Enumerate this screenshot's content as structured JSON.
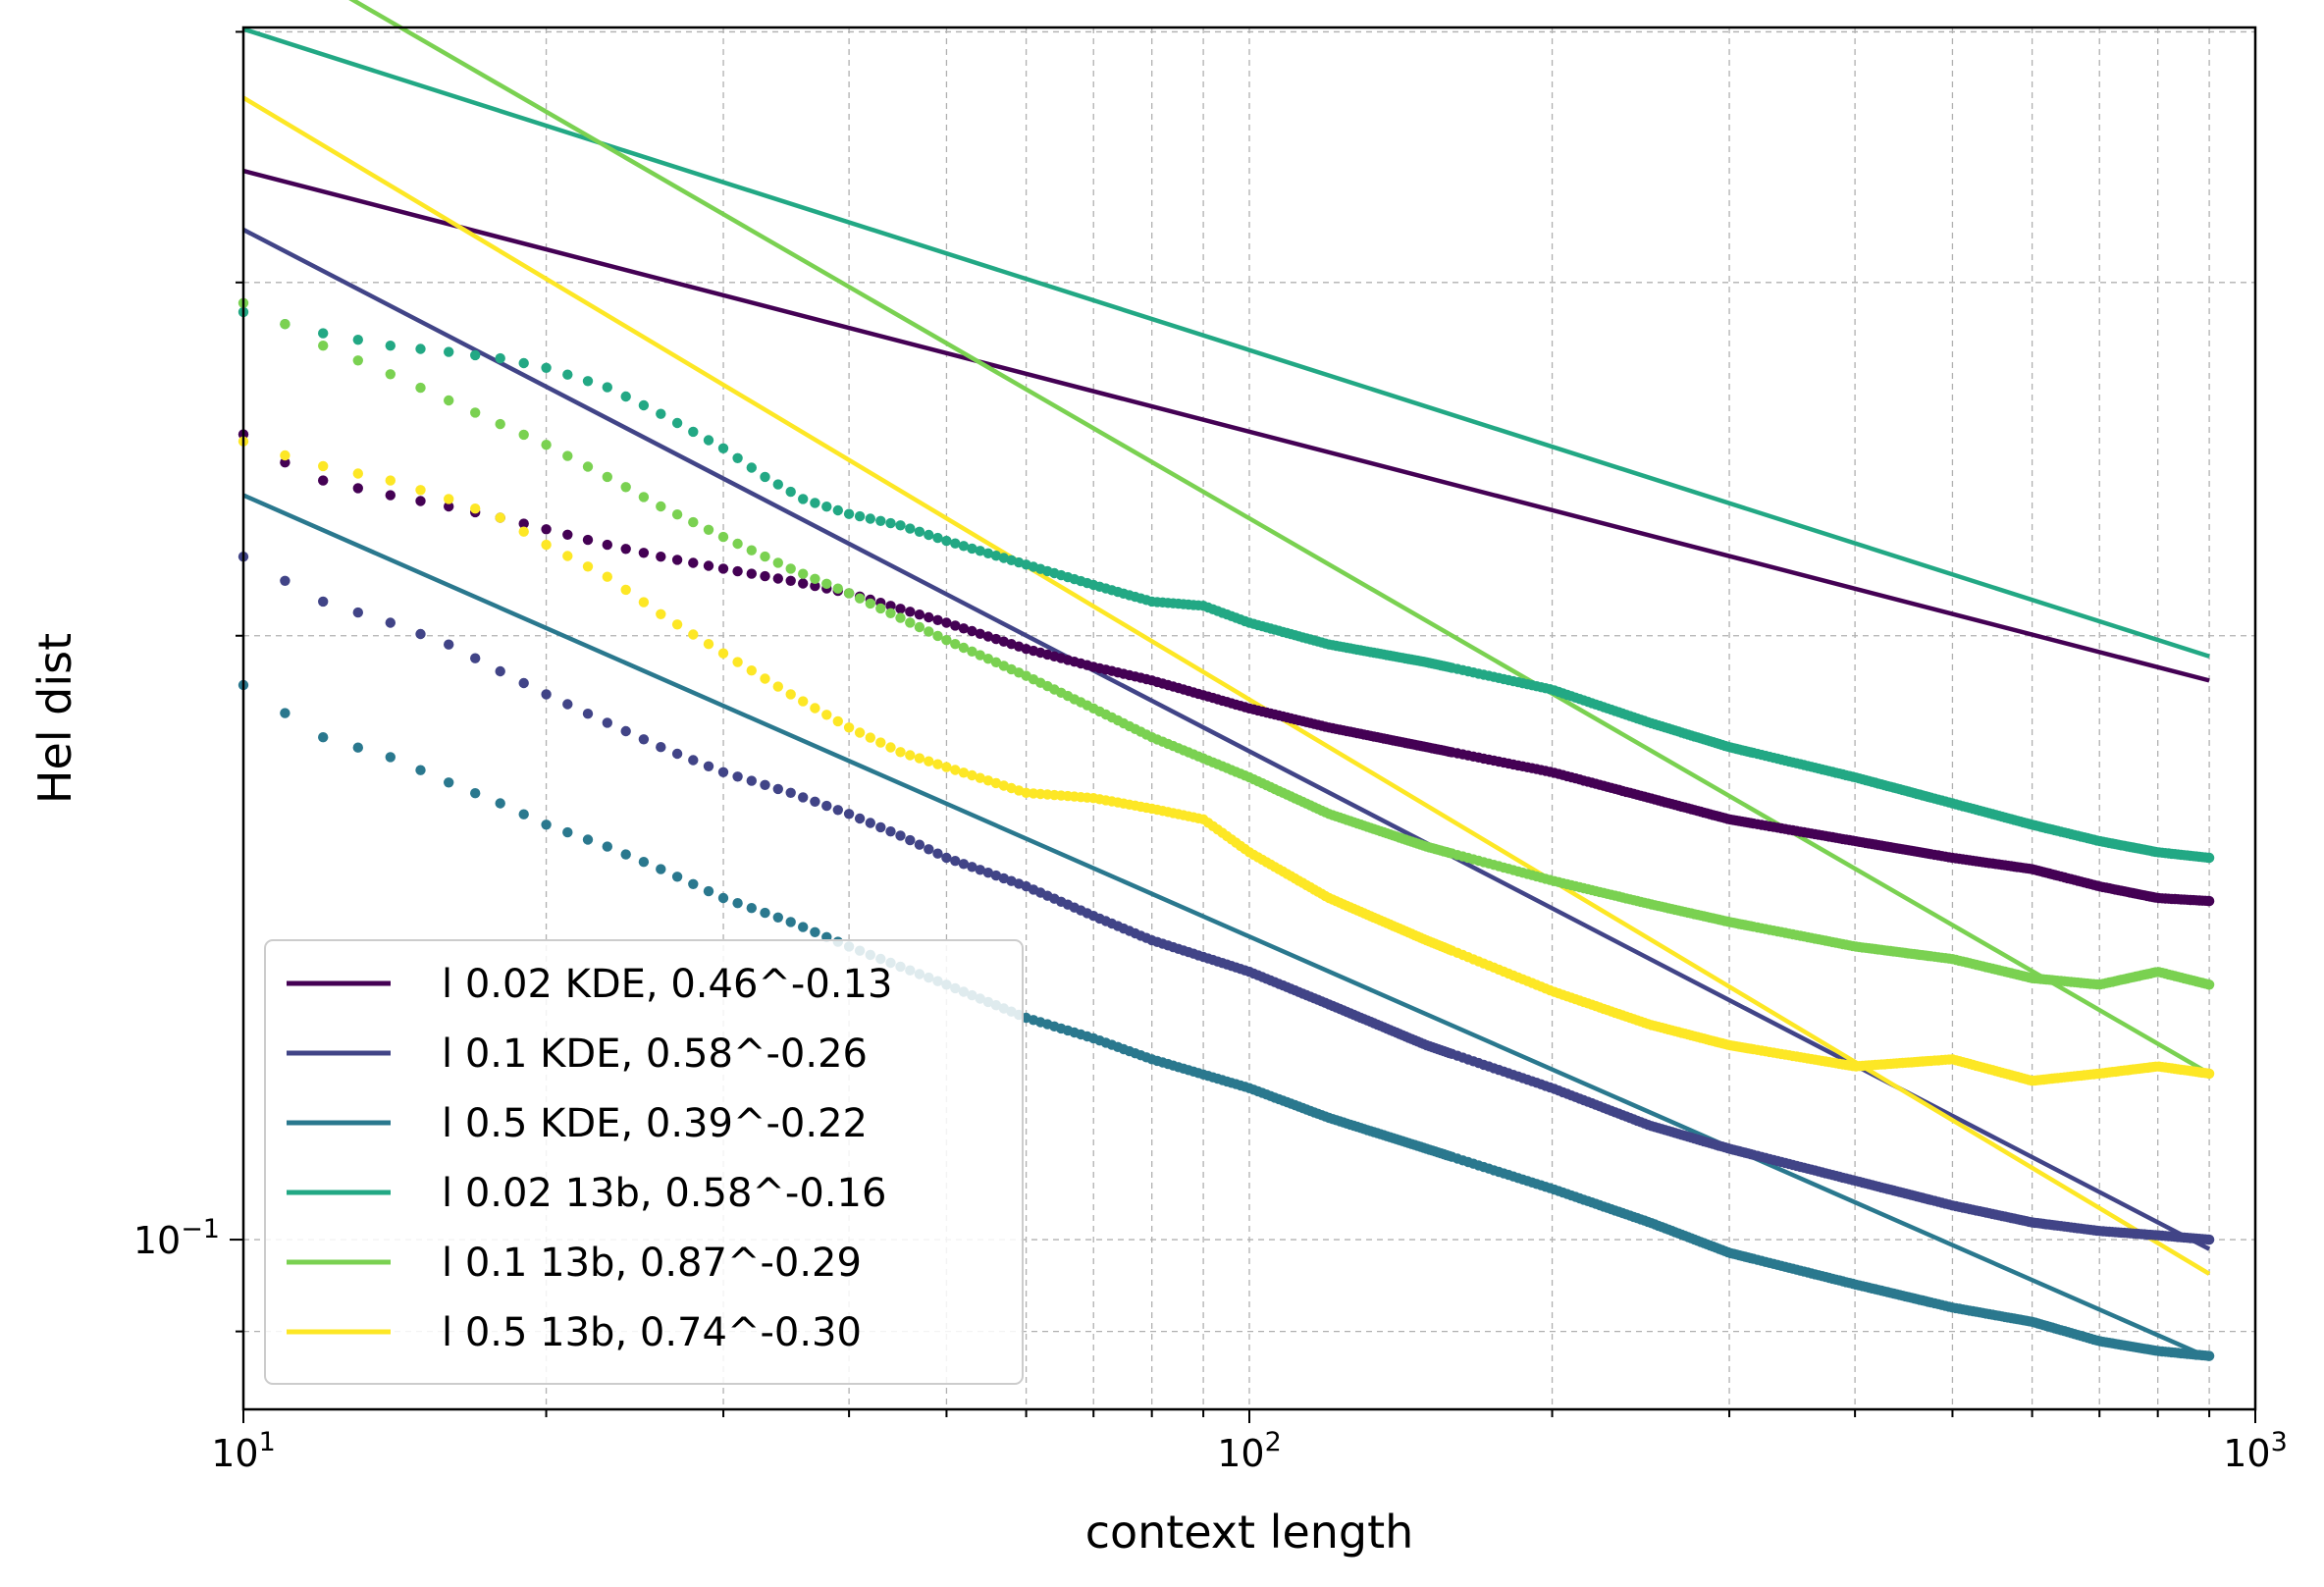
{
  "chart_data": {
    "type": "line",
    "xlabel": "context length",
    "ylabel": "Hel dist",
    "xscale": "log",
    "yscale": "log",
    "xlim": [
      10,
      1000
    ],
    "ylim": [
      0.0823,
      0.402
    ],
    "grid": true,
    "legend_position": "lower-left",
    "x_ticks": [
      {
        "value": 10,
        "base": "10",
        "exp": "1"
      },
      {
        "value": 100,
        "base": "10",
        "exp": "2"
      },
      {
        "value": 1000,
        "base": "10",
        "exp": "3"
      }
    ],
    "y_ticks": [
      {
        "value": 0.1,
        "base": "10",
        "exp": "−1"
      }
    ],
    "series": [
      {
        "name": "l 0.02 KDE, 0.46^-0.13",
        "color": "#440154",
        "fit": {
          "a": 0.46,
          "b": -0.13
        },
        "x_range": [
          10,
          900
        ],
        "points": [
          [
            10,
            0.252
          ],
          [
            11,
            0.244
          ],
          [
            12,
            0.239
          ],
          [
            14,
            0.235
          ],
          [
            16,
            0.232
          ],
          [
            18,
            0.229
          ],
          [
            20,
            0.226
          ],
          [
            23,
            0.222
          ],
          [
            26,
            0.219
          ],
          [
            30,
            0.216
          ],
          [
            35,
            0.213
          ],
          [
            40,
            0.21
          ],
          [
            50,
            0.203
          ],
          [
            60,
            0.197
          ],
          [
            70,
            0.193
          ],
          [
            80,
            0.19
          ],
          [
            100,
            0.184
          ],
          [
            120,
            0.18
          ],
          [
            150,
            0.176
          ],
          [
            200,
            0.171
          ],
          [
            250,
            0.166
          ],
          [
            300,
            0.162
          ],
          [
            400,
            0.158
          ],
          [
            500,
            0.155
          ],
          [
            600,
            0.153
          ],
          [
            700,
            0.15
          ],
          [
            800,
            0.148
          ],
          [
            900,
            0.1475
          ]
        ]
      },
      {
        "name": "l 0.1 KDE, 0.58^-0.26",
        "color": "#414487",
        "fit": {
          "a": 0.58,
          "b": -0.26
        },
        "x_range": [
          10,
          900
        ],
        "points": [
          [
            10,
            0.219
          ],
          [
            11,
            0.213
          ],
          [
            12,
            0.208
          ],
          [
            14,
            0.203
          ],
          [
            16,
            0.198
          ],
          [
            18,
            0.192
          ],
          [
            20,
            0.187
          ],
          [
            23,
            0.181
          ],
          [
            26,
            0.176
          ],
          [
            30,
            0.171
          ],
          [
            35,
            0.167
          ],
          [
            40,
            0.163
          ],
          [
            45,
            0.159
          ],
          [
            50,
            0.155
          ],
          [
            60,
            0.15
          ],
          [
            70,
            0.145
          ],
          [
            80,
            0.141
          ],
          [
            100,
            0.136
          ],
          [
            120,
            0.131
          ],
          [
            150,
            0.125
          ],
          [
            200,
            0.119
          ],
          [
            250,
            0.114
          ],
          [
            300,
            0.111
          ],
          [
            400,
            0.107
          ],
          [
            500,
            0.104
          ],
          [
            600,
            0.102
          ],
          [
            700,
            0.101
          ],
          [
            800,
            0.1005
          ],
          [
            900,
            0.1
          ]
        ]
      },
      {
        "name": "l 0.5 KDE, 0.39^-0.22",
        "color": "#2a788e",
        "fit": {
          "a": 0.39,
          "b": -0.22
        },
        "x_range": [
          10,
          900
        ],
        "points": [
          [
            10,
            0.189
          ],
          [
            11,
            0.183
          ],
          [
            12,
            0.178
          ],
          [
            14,
            0.174
          ],
          [
            16,
            0.169
          ],
          [
            18,
            0.165
          ],
          [
            20,
            0.161
          ],
          [
            23,
            0.157
          ],
          [
            26,
            0.153
          ],
          [
            30,
            0.148
          ],
          [
            35,
            0.144
          ],
          [
            40,
            0.14
          ],
          [
            50,
            0.134
          ],
          [
            60,
            0.129
          ],
          [
            70,
            0.126
          ],
          [
            80,
            0.123
          ],
          [
            100,
            0.119
          ],
          [
            120,
            0.115
          ],
          [
            150,
            0.111
          ],
          [
            200,
            0.106
          ],
          [
            250,
            0.102
          ],
          [
            300,
            0.0985
          ],
          [
            400,
            0.095
          ],
          [
            500,
            0.0925
          ],
          [
            600,
            0.091
          ],
          [
            700,
            0.089
          ],
          [
            800,
            0.088
          ],
          [
            900,
            0.0875
          ]
        ]
      },
      {
        "name": "l 0.02 13b, 0.58^-0.16",
        "color": "#22a884",
        "fit": {
          "a": 0.58,
          "b": -0.16
        },
        "x_range": [
          10,
          900
        ],
        "points": [
          [
            10,
            0.29
          ],
          [
            11,
            0.286
          ],
          [
            12,
            0.283
          ],
          [
            14,
            0.279
          ],
          [
            16,
            0.277
          ],
          [
            18,
            0.275
          ],
          [
            20,
            0.272
          ],
          [
            23,
            0.266
          ],
          [
            26,
            0.258
          ],
          [
            30,
            0.248
          ],
          [
            33,
            0.24
          ],
          [
            36,
            0.234
          ],
          [
            40,
            0.23
          ],
          [
            45,
            0.227
          ],
          [
            50,
            0.223
          ],
          [
            60,
            0.217
          ],
          [
            70,
            0.212
          ],
          [
            80,
            0.208
          ],
          [
            90,
            0.207
          ],
          [
            100,
            0.203
          ],
          [
            120,
            0.198
          ],
          [
            150,
            0.194
          ],
          [
            200,
            0.188
          ],
          [
            250,
            0.181
          ],
          [
            300,
            0.176
          ],
          [
            400,
            0.17
          ],
          [
            500,
            0.165
          ],
          [
            600,
            0.161
          ],
          [
            700,
            0.158
          ],
          [
            800,
            0.156
          ],
          [
            900,
            0.155
          ]
        ]
      },
      {
        "name": "l 0.1 13b, 0.87^-0.29",
        "color": "#7ad151",
        "fit": {
          "a": 0.87,
          "b": -0.29
        },
        "x_range": [
          10,
          900
        ],
        "points": [
          [
            10,
            0.293
          ],
          [
            11,
            0.286
          ],
          [
            12,
            0.279
          ],
          [
            14,
            0.27
          ],
          [
            16,
            0.262
          ],
          [
            18,
            0.255
          ],
          [
            20,
            0.249
          ],
          [
            23,
            0.24
          ],
          [
            26,
            0.232
          ],
          [
            30,
            0.224
          ],
          [
            35,
            0.216
          ],
          [
            40,
            0.21
          ],
          [
            50,
            0.199
          ],
          [
            60,
            0.191
          ],
          [
            70,
            0.184
          ],
          [
            80,
            0.178
          ],
          [
            100,
            0.17
          ],
          [
            120,
            0.163
          ],
          [
            150,
            0.157
          ],
          [
            200,
            0.151
          ],
          [
            250,
            0.147
          ],
          [
            300,
            0.144
          ],
          [
            400,
            0.14
          ],
          [
            500,
            0.138
          ],
          [
            600,
            0.135
          ],
          [
            700,
            0.134
          ],
          [
            800,
            0.136
          ],
          [
            900,
            0.134
          ]
        ]
      },
      {
        "name": "l 0.5 13b, 0.74^-0.30",
        "color": "#fde725",
        "fit": {
          "a": 0.74,
          "b": -0.3
        },
        "x_range": [
          10,
          900
        ],
        "points": [
          [
            10,
            0.25
          ],
          [
            11,
            0.246
          ],
          [
            12,
            0.243
          ],
          [
            14,
            0.239
          ],
          [
            16,
            0.234
          ],
          [
            18,
            0.229
          ],
          [
            20,
            0.222
          ],
          [
            23,
            0.214
          ],
          [
            26,
            0.205
          ],
          [
            30,
            0.196
          ],
          [
            35,
            0.187
          ],
          [
            40,
            0.18
          ],
          [
            45,
            0.175
          ],
          [
            50,
            0.172
          ],
          [
            60,
            0.167
          ],
          [
            70,
            0.166
          ],
          [
            80,
            0.164
          ],
          [
            90,
            0.162
          ],
          [
            100,
            0.156
          ],
          [
            120,
            0.148
          ],
          [
            150,
            0.141
          ],
          [
            200,
            0.133
          ],
          [
            250,
            0.128
          ],
          [
            300,
            0.125
          ],
          [
            400,
            0.122
          ],
          [
            500,
            0.123
          ],
          [
            600,
            0.12
          ],
          [
            700,
            0.121
          ],
          [
            800,
            0.122
          ],
          [
            900,
            0.121
          ]
        ]
      }
    ]
  }
}
